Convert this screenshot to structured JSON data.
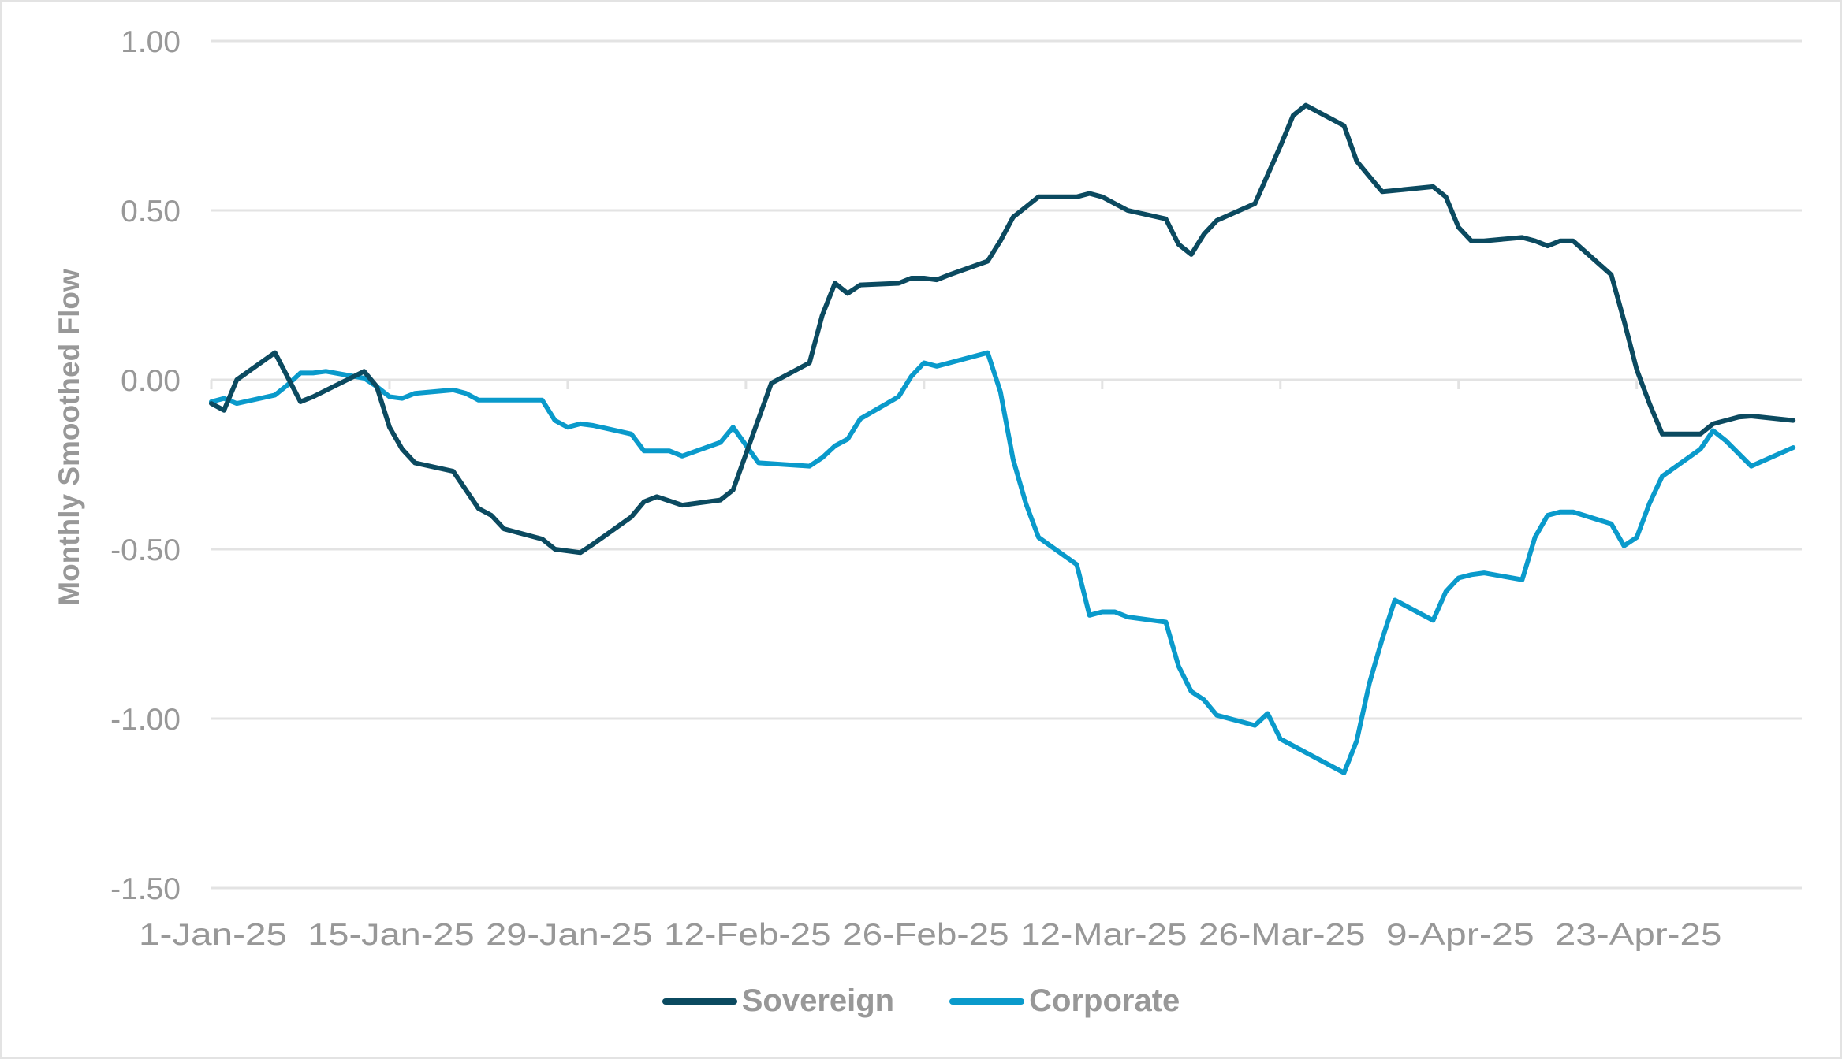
{
  "chart_data": {
    "type": "line",
    "title": "",
    "xlabel": "",
    "ylabel": "Monthly Smoothed Flow",
    "ylim": [
      -1.5,
      1.0
    ],
    "yticks": [
      "1.00",
      "0.50",
      "0.00",
      "-0.50",
      "-1.00",
      "-1.50"
    ],
    "ytick_values": [
      1.0,
      0.5,
      0.0,
      -0.5,
      -1.0,
      -1.5
    ],
    "xticks": [
      "1-Jan-25",
      "15-Jan-25",
      "29-Jan-25",
      "12-Feb-25",
      "26-Feb-25",
      "12-Mar-25",
      "26-Mar-25",
      "9-Apr-25",
      "23-Apr-25"
    ],
    "xtick_days": [
      0,
      14,
      28,
      42,
      56,
      70,
      84,
      98,
      112
    ],
    "x_range_days": [
      0,
      125
    ],
    "grid": "horizontal",
    "legend_position": "bottom",
    "series": [
      {
        "name": "Sovereign",
        "color": "#0B4A60",
        "points": [
          [
            0,
            -0.07
          ],
          [
            1,
            -0.09
          ],
          [
            2,
            0.0
          ],
          [
            5,
            0.08
          ],
          [
            7,
            -0.065
          ],
          [
            8,
            -0.05
          ],
          [
            12,
            0.025
          ],
          [
            13,
            -0.02
          ],
          [
            14,
            -0.14
          ],
          [
            15,
            -0.205
          ],
          [
            16,
            -0.245
          ],
          [
            19,
            -0.27
          ],
          [
            21,
            -0.38
          ],
          [
            22,
            -0.4
          ],
          [
            23,
            -0.44
          ],
          [
            26,
            -0.47
          ],
          [
            27,
            -0.5
          ],
          [
            29,
            -0.51
          ],
          [
            30,
            -0.485
          ],
          [
            33,
            -0.405
          ],
          [
            34,
            -0.36
          ],
          [
            35,
            -0.345
          ],
          [
            37,
            -0.37
          ],
          [
            40,
            -0.355
          ],
          [
            41,
            -0.325
          ],
          [
            44,
            -0.01
          ],
          [
            47,
            0.05
          ],
          [
            48,
            0.19
          ],
          [
            49,
            0.285
          ],
          [
            50,
            0.255
          ],
          [
            51,
            0.28
          ],
          [
            54,
            0.285
          ],
          [
            55,
            0.3
          ],
          [
            56,
            0.3
          ],
          [
            57,
            0.295
          ],
          [
            58,
            0.31
          ],
          [
            61,
            0.35
          ],
          [
            62,
            0.41
          ],
          [
            63,
            0.48
          ],
          [
            64,
            0.51
          ],
          [
            65,
            0.54
          ],
          [
            68,
            0.54
          ],
          [
            69,
            0.55
          ],
          [
            70,
            0.54
          ],
          [
            71,
            0.52
          ],
          [
            72,
            0.5
          ],
          [
            75,
            0.475
          ],
          [
            76,
            0.4
          ],
          [
            77,
            0.37
          ],
          [
            78,
            0.43
          ],
          [
            79,
            0.47
          ],
          [
            82,
            0.52
          ],
          [
            83,
            0.605
          ],
          [
            84,
            0.69
          ],
          [
            85,
            0.78
          ],
          [
            86,
            0.81
          ],
          [
            89,
            0.75
          ],
          [
            90,
            0.645
          ],
          [
            91,
            0.6
          ],
          [
            92,
            0.555
          ],
          [
            96,
            0.57
          ],
          [
            97,
            0.54
          ],
          [
            98,
            0.45
          ],
          [
            99,
            0.41
          ],
          [
            100,
            0.41
          ],
          [
            103,
            0.42
          ],
          [
            104,
            0.41
          ],
          [
            105,
            0.395
          ],
          [
            106,
            0.41
          ],
          [
            107,
            0.41
          ],
          [
            110,
            0.31
          ],
          [
            111,
            0.175
          ],
          [
            112,
            0.03
          ],
          [
            113,
            -0.07
          ],
          [
            114,
            -0.16
          ],
          [
            117,
            -0.16
          ],
          [
            118,
            -0.13
          ],
          [
            119,
            -0.12
          ],
          [
            120,
            -0.11
          ],
          [
            121,
            -0.107
          ],
          [
            124.3,
            -0.12
          ]
        ]
      },
      {
        "name": "Corporate",
        "color": "#0A9ACB",
        "points": [
          [
            0,
            -0.065
          ],
          [
            1,
            -0.055
          ],
          [
            2,
            -0.07
          ],
          [
            5,
            -0.045
          ],
          [
            6,
            -0.015
          ],
          [
            7,
            0.02
          ],
          [
            8,
            0.02
          ],
          [
            9,
            0.025
          ],
          [
            12,
            0.005
          ],
          [
            13,
            -0.02
          ],
          [
            14,
            -0.05
          ],
          [
            15,
            -0.055
          ],
          [
            16,
            -0.04
          ],
          [
            19,
            -0.03
          ],
          [
            20,
            -0.04
          ],
          [
            21,
            -0.06
          ],
          [
            22,
            -0.06
          ],
          [
            23,
            -0.06
          ],
          [
            26,
            -0.06
          ],
          [
            27,
            -0.12
          ],
          [
            28,
            -0.14
          ],
          [
            29,
            -0.13
          ],
          [
            30,
            -0.135
          ],
          [
            33,
            -0.16
          ],
          [
            34,
            -0.21
          ],
          [
            35,
            -0.21
          ],
          [
            36,
            -0.21
          ],
          [
            37,
            -0.225
          ],
          [
            40,
            -0.185
          ],
          [
            41,
            -0.14
          ],
          [
            43,
            -0.245
          ],
          [
            47,
            -0.255
          ],
          [
            48,
            -0.23
          ],
          [
            49,
            -0.195
          ],
          [
            50,
            -0.175
          ],
          [
            51,
            -0.115
          ],
          [
            54,
            -0.05
          ],
          [
            55,
            0.01
          ],
          [
            56,
            0.05
          ],
          [
            57,
            0.04
          ],
          [
            61,
            0.08
          ],
          [
            62,
            -0.035
          ],
          [
            63,
            -0.235
          ],
          [
            64,
            -0.365
          ],
          [
            65,
            -0.465
          ],
          [
            68,
            -0.545
          ],
          [
            69,
            -0.695
          ],
          [
            70,
            -0.685
          ],
          [
            71,
            -0.685
          ],
          [
            72,
            -0.7
          ],
          [
            75,
            -0.715
          ],
          [
            76,
            -0.845
          ],
          [
            77,
            -0.92
          ],
          [
            78,
            -0.945
          ],
          [
            79,
            -0.99
          ],
          [
            82,
            -1.02
          ],
          [
            83,
            -0.985
          ],
          [
            84,
            -1.06
          ],
          [
            86,
            -1.1
          ],
          [
            89,
            -1.16
          ],
          [
            90,
            -1.065
          ],
          [
            91,
            -0.895
          ],
          [
            92,
            -0.765
          ],
          [
            93,
            -0.65
          ],
          [
            96,
            -0.71
          ],
          [
            97,
            -0.625
          ],
          [
            98,
            -0.585
          ],
          [
            99,
            -0.575
          ],
          [
            100,
            -0.57
          ],
          [
            103,
            -0.59
          ],
          [
            104,
            -0.465
          ],
          [
            105,
            -0.4
          ],
          [
            106,
            -0.39
          ],
          [
            107,
            -0.39
          ],
          [
            110,
            -0.425
          ],
          [
            111,
            -0.49
          ],
          [
            112,
            -0.465
          ],
          [
            113,
            -0.365
          ],
          [
            114,
            -0.285
          ],
          [
            117,
            -0.205
          ],
          [
            118,
            -0.15
          ],
          [
            119,
            -0.18
          ],
          [
            121,
            -0.255
          ],
          [
            124.3,
            -0.2
          ]
        ]
      }
    ]
  },
  "legend": {
    "items": [
      {
        "label": "Sovereign",
        "color": "#0B4A60"
      },
      {
        "label": "Corporate",
        "color": "#0A9ACB"
      }
    ]
  }
}
